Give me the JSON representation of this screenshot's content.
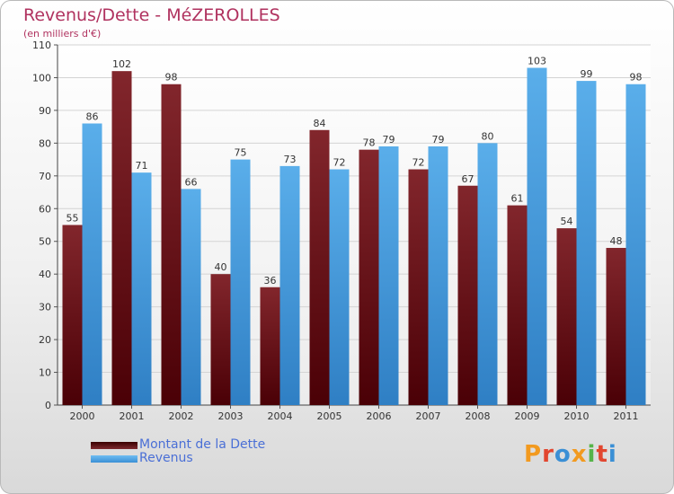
{
  "header": {
    "title": "Revenus/Dette - MéZEROLLES",
    "subtitle": "(en milliers d'€)"
  },
  "legend": {
    "debt_label": "Montant de la Dette",
    "revenue_label": "Revenus"
  },
  "brand": {
    "text": "Proxiti",
    "colors": [
      "#f29a1f",
      "#e2462f",
      "#3a8fd5",
      "#f29a1f",
      "#56b449",
      "#e2462f",
      "#3a8fd5"
    ]
  },
  "colors": {
    "debt": "#7a1f24",
    "revenue": "#4fa6e6",
    "title": "#b0325f",
    "legend_text": "#4a6fd6"
  },
  "chart_data": {
    "type": "bar",
    "categories": [
      "2000",
      "2001",
      "2002",
      "2003",
      "2004",
      "2005",
      "2006",
      "2007",
      "2008",
      "2009",
      "2010",
      "2011"
    ],
    "series": [
      {
        "name": "Montant de la Dette",
        "values": [
          55,
          102,
          98,
          40,
          36,
          84,
          78,
          72,
          67,
          61,
          54,
          48
        ]
      },
      {
        "name": "Revenus",
        "values": [
          86,
          71,
          66,
          75,
          73,
          72,
          79,
          79,
          80,
          103,
          99,
          98
        ]
      }
    ],
    "title": "Revenus/Dette - MéZEROLLES",
    "ylabel": "(en milliers d'€)",
    "ylim": [
      0,
      110
    ],
    "yticks": [
      0,
      10,
      20,
      30,
      40,
      50,
      60,
      70,
      80,
      90,
      100,
      110
    ],
    "grid": true,
    "legend_position": "bottom-left"
  }
}
